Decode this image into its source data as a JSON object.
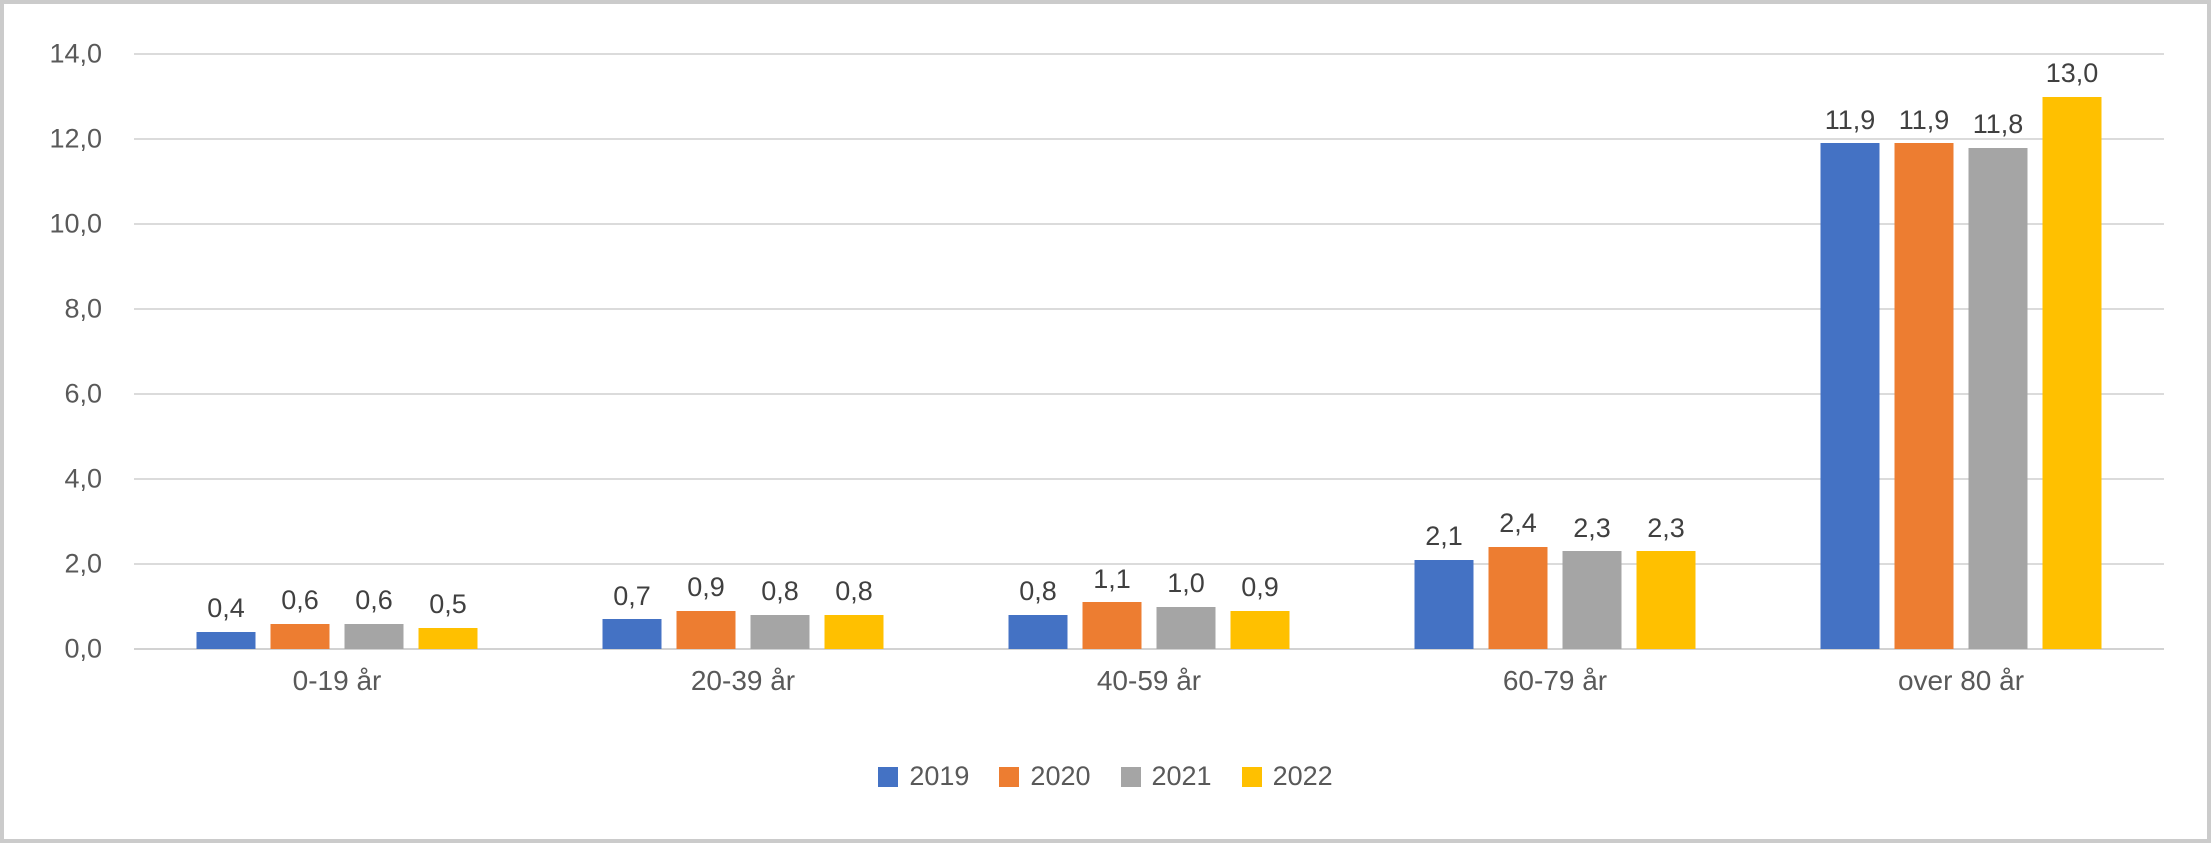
{
  "chart_data": {
    "type": "bar",
    "title": "",
    "categories": [
      "0-19 år",
      "20-39 år",
      "40-59 år",
      "60-79 år",
      "over 80 år"
    ],
    "series": [
      {
        "name": "2019",
        "color": "#4472C4",
        "values": [
          0.4,
          0.7,
          0.8,
          2.1,
          11.9
        ],
        "labels": [
          "0,4",
          "0,7",
          "0,8",
          "2,1",
          "11,9"
        ]
      },
      {
        "name": "2020",
        "color": "#ED7D31",
        "values": [
          0.6,
          0.9,
          1.1,
          2.4,
          11.9
        ],
        "labels": [
          "0,6",
          "0,9",
          "1,1",
          "2,4",
          "11,9"
        ]
      },
      {
        "name": "2021",
        "color": "#A5A5A5",
        "values": [
          0.6,
          0.8,
          1.0,
          2.3,
          11.8
        ],
        "labels": [
          "0,6",
          "0,8",
          "1,0",
          "2,3",
          "11,8"
        ]
      },
      {
        "name": "2022",
        "color": "#FFC000",
        "values": [
          0.5,
          0.8,
          0.9,
          2.3,
          13.0
        ],
        "labels": [
          "0,5",
          "0,8",
          "0,9",
          "2,3",
          "13,0"
        ]
      }
    ],
    "y_axis": {
      "min": 0,
      "max": 14,
      "step": 2,
      "tick_labels": [
        "0,0",
        "2,0",
        "4,0",
        "6,0",
        "8,0",
        "10,0",
        "12,0",
        "14,0"
      ]
    },
    "grid": true,
    "legend_position": "bottom",
    "colors": {
      "axis_text": "#595959",
      "data_label_text": "#404040",
      "gridline": "#DBDBDB",
      "axis_line": "#D2D2D2",
      "background": "#FFFFFF",
      "frame_border": "#CBCBCB"
    }
  }
}
